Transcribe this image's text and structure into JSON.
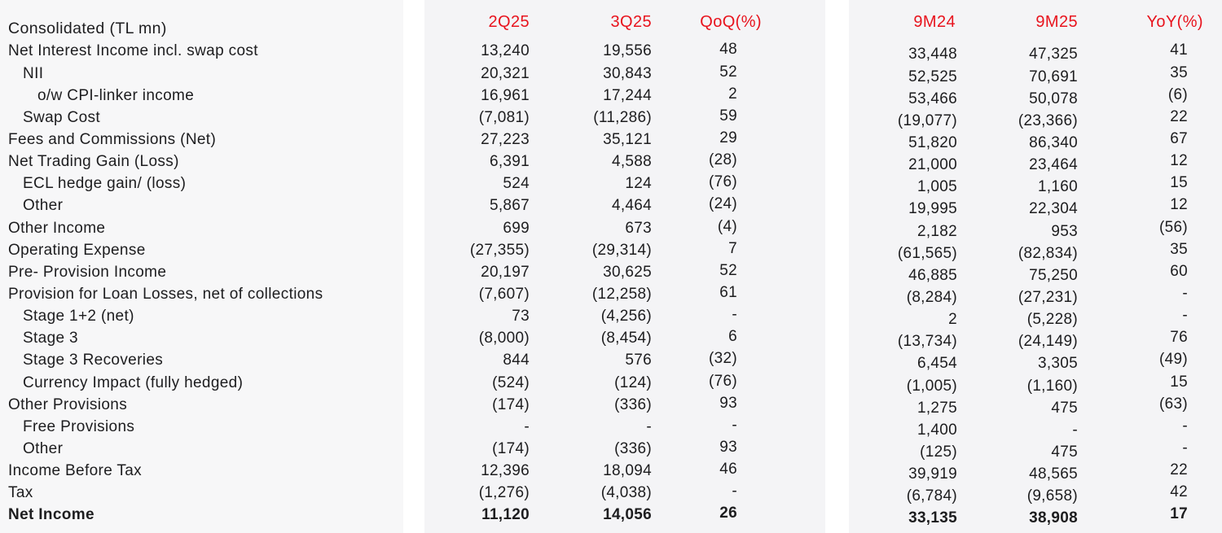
{
  "table": {
    "title": "Consolidated (TL mn)",
    "columns": {
      "quarter": [
        "2Q25",
        "3Q25",
        "QoQ(%)"
      ],
      "ytd": [
        "9M24",
        "9M25",
        "YoY(%)"
      ]
    },
    "rows": [
      {
        "label": "Net Interest Income incl. swap cost",
        "indent": 0,
        "bold": false,
        "q1": "13,240",
        "q2": "19,556",
        "qoq": "48",
        "m1": "33,448",
        "m2": "47,325",
        "yoy": "41"
      },
      {
        "label": "NII",
        "indent": 1,
        "bold": false,
        "q1": "20,321",
        "q2": "30,843",
        "qoq": "52",
        "m1": "52,525",
        "m2": "70,691",
        "yoy": "35"
      },
      {
        "label": "o/w CPI-linker income",
        "indent": 2,
        "bold": false,
        "q1": "16,961",
        "q2": "17,244",
        "qoq": "2",
        "m1": "53,466",
        "m2": "50,078",
        "yoy": "(6)"
      },
      {
        "label": "Swap Cost",
        "indent": 1,
        "bold": false,
        "q1": "(7,081)",
        "q2": "(11,286)",
        "qoq": "59",
        "m1": "(19,077)",
        "m2": "(23,366)",
        "yoy": "22"
      },
      {
        "label": "Fees and Commissions (Net)",
        "indent": 0,
        "bold": false,
        "q1": "27,223",
        "q2": "35,121",
        "qoq": "29",
        "m1": "51,820",
        "m2": "86,340",
        "yoy": "67"
      },
      {
        "label": "Net Trading Gain (Loss)",
        "indent": 0,
        "bold": false,
        "q1": "6,391",
        "q2": "4,588",
        "qoq": "(28)",
        "m1": "21,000",
        "m2": "23,464",
        "yoy": "12"
      },
      {
        "label": "ECL hedge gain/ (loss)",
        "indent": 1,
        "bold": false,
        "q1": "524",
        "q2": "124",
        "qoq": "(76)",
        "m1": "1,005",
        "m2": "1,160",
        "yoy": "15"
      },
      {
        "label": "Other",
        "indent": 1,
        "bold": false,
        "q1": "5,867",
        "q2": "4,464",
        "qoq": "(24)",
        "m1": "19,995",
        "m2": "22,304",
        "yoy": "12"
      },
      {
        "label": "Other Income",
        "indent": 0,
        "bold": false,
        "q1": "699",
        "q2": "673",
        "qoq": "(4)",
        "m1": "2,182",
        "m2": "953",
        "yoy": "(56)"
      },
      {
        "label": "Operating Expense",
        "indent": 0,
        "bold": false,
        "q1": "(27,355)",
        "q2": "(29,314)",
        "qoq": "7",
        "m1": "(61,565)",
        "m2": "(82,834)",
        "yoy": "35"
      },
      {
        "label": "Pre- Provision Income",
        "indent": 0,
        "bold": false,
        "q1": "20,197",
        "q2": "30,625",
        "qoq": "52",
        "m1": "46,885",
        "m2": "75,250",
        "yoy": "60"
      },
      {
        "label": "Provision for Loan Losses, net of collections",
        "indent": 0,
        "bold": false,
        "q1": "(7,607)",
        "q2": "(12,258)",
        "qoq": "61",
        "m1": "(8,284)",
        "m2": "(27,231)",
        "yoy": "-"
      },
      {
        "label": "Stage 1+2 (net)",
        "indent": 1,
        "bold": false,
        "q1": "73",
        "q2": "(4,256)",
        "qoq": "-",
        "m1": "2",
        "m2": "(5,228)",
        "yoy": "-"
      },
      {
        "label": "Stage 3",
        "indent": 1,
        "bold": false,
        "q1": "(8,000)",
        "q2": "(8,454)",
        "qoq": "6",
        "m1": "(13,734)",
        "m2": "(24,149)",
        "yoy": "76"
      },
      {
        "label": "Stage 3 Recoveries",
        "indent": 1,
        "bold": false,
        "q1": "844",
        "q2": "576",
        "qoq": "(32)",
        "m1": "6,454",
        "m2": "3,305",
        "yoy": "(49)"
      },
      {
        "label": "Currency Impact (fully hedged)",
        "indent": 1,
        "bold": false,
        "q1": "(524)",
        "q2": "(124)",
        "qoq": "(76)",
        "m1": "(1,005)",
        "m2": "(1,160)",
        "yoy": "15"
      },
      {
        "label": "Other Provisions",
        "indent": 0,
        "bold": false,
        "q1": "(174)",
        "q2": "(336)",
        "qoq": "93",
        "m1": "1,275",
        "m2": "475",
        "yoy": "(63)"
      },
      {
        "label": "Free Provisions",
        "indent": 1,
        "bold": false,
        "q1": "-",
        "q2": "-",
        "qoq": "-",
        "m1": "1,400",
        "m2": "-",
        "yoy": "-"
      },
      {
        "label": "Other",
        "indent": 1,
        "bold": false,
        "q1": "(174)",
        "q2": "(336)",
        "qoq": "93",
        "m1": "(125)",
        "m2": "475",
        "yoy": "-"
      },
      {
        "label": "Income Before Tax",
        "indent": 0,
        "bold": false,
        "q1": "12,396",
        "q2": "18,094",
        "qoq": "46",
        "m1": "39,919",
        "m2": "48,565",
        "yoy": "22"
      },
      {
        "label": "Tax",
        "indent": 0,
        "bold": false,
        "q1": "(1,276)",
        "q2": "(4,038)",
        "qoq": "-",
        "m1": "(6,784)",
        "m2": "(9,658)",
        "yoy": "42"
      },
      {
        "label": "Net Income",
        "indent": 0,
        "bold": true,
        "q1": "11,120",
        "q2": "14,056",
        "qoq": "26",
        "m1": "33,135",
        "m2": "38,908",
        "yoy": "17"
      }
    ],
    "colors": {
      "header_red": "#e8131d",
      "text": "#1d1d1f",
      "label_panel_bg": "#f7f7f8",
      "data_panel_bg": "#f4f4f6"
    }
  }
}
